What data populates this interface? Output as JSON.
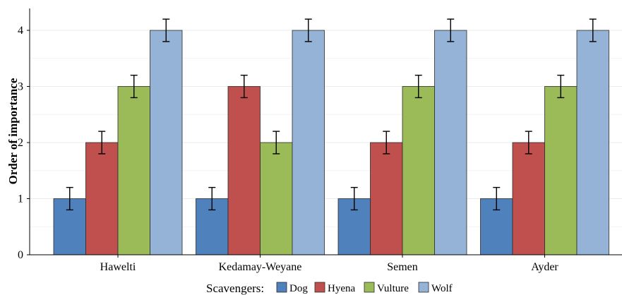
{
  "chart_data": {
    "type": "bar",
    "title": "",
    "xlabel": "",
    "ylabel": "Order of importance",
    "ylim": [
      0,
      4.2
    ],
    "yticks": [
      0,
      1,
      2,
      3,
      4
    ],
    "grid": true,
    "categories": [
      "Hawelti",
      "Kedamay-Weyane",
      "Semen",
      "Ayder"
    ],
    "series": [
      {
        "name": "Dog",
        "color": "#4f81bd",
        "values": [
          1,
          1,
          1,
          1
        ],
        "error": [
          0.2,
          0.2,
          0.2,
          0.2
        ]
      },
      {
        "name": "Hyena",
        "color": "#c0504d",
        "values": [
          2,
          3,
          2,
          2
        ],
        "error": [
          0.2,
          0.2,
          0.2,
          0.2
        ]
      },
      {
        "name": "Vulture",
        "color": "#9bbb59",
        "values": [
          3,
          2,
          3,
          3
        ],
        "error": [
          0.2,
          0.2,
          0.2,
          0.2
        ]
      },
      {
        "name": "Wolf",
        "color": "#95b3d7",
        "values": [
          4,
          4,
          4,
          4
        ],
        "error": [
          0.2,
          0.2,
          0.2,
          0.2
        ]
      }
    ],
    "legend": {
      "title": "Scavengers:",
      "placement": "bottom"
    }
  }
}
